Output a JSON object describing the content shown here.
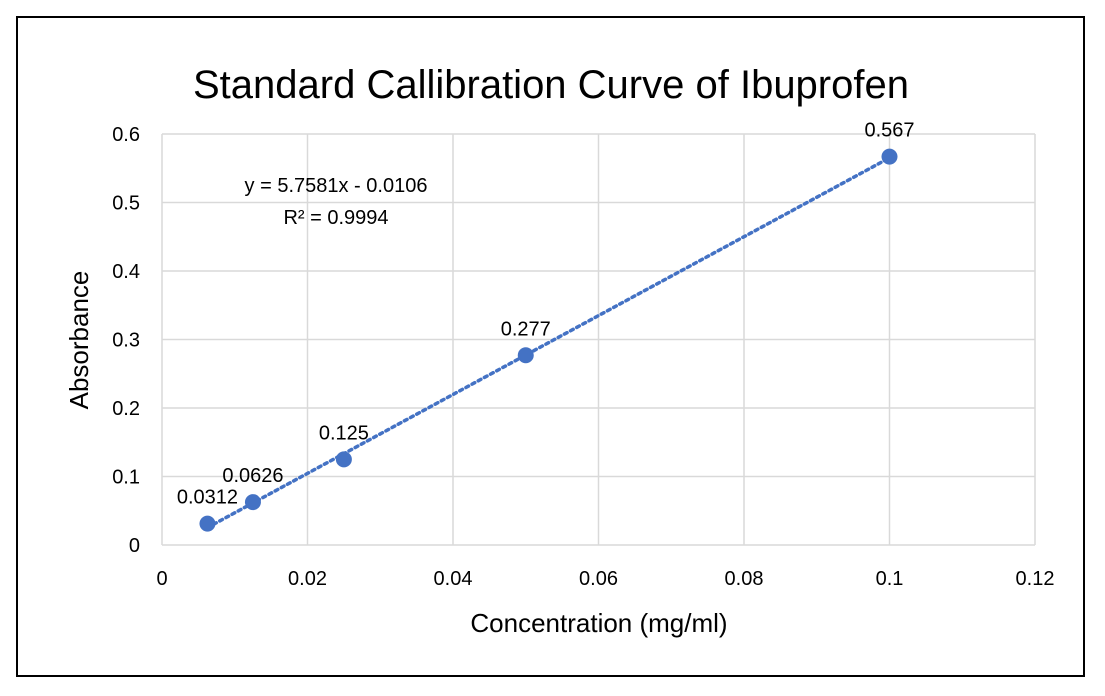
{
  "chart_data": {
    "type": "scatter",
    "title": "Standard Callibration Curve of Ibuprofen",
    "xlabel": "Concentration (mg/ml)",
    "ylabel": "Absorbance",
    "xlim": [
      0,
      0.12
    ],
    "ylim": [
      0,
      0.6
    ],
    "xticks": [
      0,
      0.02,
      0.04,
      0.06,
      0.08,
      0.1,
      0.12
    ],
    "xtick_labels": [
      "0",
      "0.02",
      "0.04",
      "0.06",
      "0.08",
      "0.1",
      "0.12"
    ],
    "yticks": [
      0,
      0.1,
      0.2,
      0.3,
      0.4,
      0.5,
      0.6
    ],
    "ytick_labels": [
      "0",
      "0.1",
      "0.2",
      "0.3",
      "0.4",
      "0.5",
      "0.6"
    ],
    "grid": true,
    "series": [
      {
        "x": [
          0.00625,
          0.0125,
          0.025,
          0.05,
          0.1
        ],
        "y": [
          0.0312,
          0.0626,
          0.125,
          0.277,
          0.567
        ],
        "labels": [
          "0.0312",
          "0.0626",
          "0.125",
          "0.277",
          "0.567"
        ],
        "color": "#4472c4"
      }
    ],
    "trendline": {
      "type": "linear",
      "slope": 5.7581,
      "intercept": -0.0106,
      "equation": "y = 5.7581x - 0.0106",
      "r_squared": "R² = 0.9994",
      "style": "dotted",
      "color": "#4472c4"
    }
  }
}
